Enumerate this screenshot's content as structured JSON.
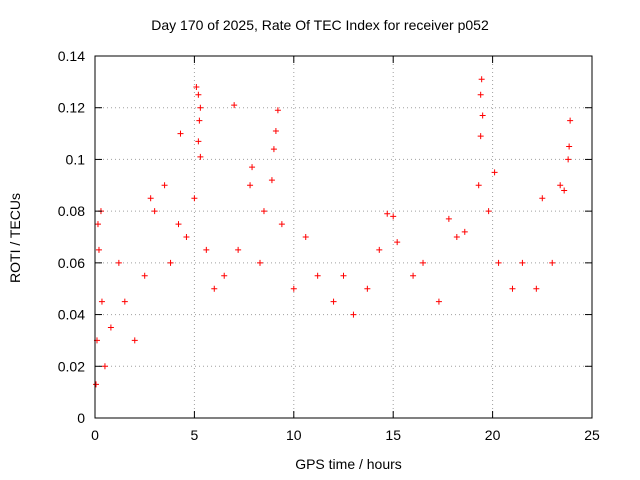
{
  "chart_data": {
    "type": "scatter",
    "title": "Day 170 of 2025, Rate Of TEC Index for receiver p052",
    "xlabel": "GPS time / hours",
    "ylabel": "ROTI / TECUs",
    "xlim": [
      0,
      25
    ],
    "ylim": [
      0,
      0.14
    ],
    "x_ticks": [
      0,
      5,
      10,
      15,
      20,
      25
    ],
    "y_ticks": [
      0,
      0.02,
      0.04,
      0.06,
      0.08,
      0.1,
      0.12,
      0.14
    ],
    "x_tick_labels": [
      "0",
      "5",
      "10",
      "15",
      "20",
      "25"
    ],
    "y_tick_labels": [
      "0",
      "0.02",
      "0.04",
      "0.06",
      "0.08",
      "0.1",
      "0.12",
      "0.14"
    ],
    "grid": true,
    "marker": "+",
    "color": "#ff0000",
    "series": [
      {
        "name": "ROTI",
        "points": [
          [
            0.05,
            0.013
          ],
          [
            0.1,
            0.03
          ],
          [
            0.15,
            0.075
          ],
          [
            0.2,
            0.065
          ],
          [
            0.3,
            0.08
          ],
          [
            0.35,
            0.045
          ],
          [
            0.5,
            0.02
          ],
          [
            0.8,
            0.035
          ],
          [
            1.2,
            0.06
          ],
          [
            1.5,
            0.045
          ],
          [
            2.0,
            0.03
          ],
          [
            2.5,
            0.055
          ],
          [
            2.8,
            0.085
          ],
          [
            3.0,
            0.08
          ],
          [
            3.5,
            0.09
          ],
          [
            3.8,
            0.06
          ],
          [
            4.2,
            0.075
          ],
          [
            4.3,
            0.11
          ],
          [
            4.6,
            0.07
          ],
          [
            5.0,
            0.085
          ],
          [
            5.1,
            0.128
          ],
          [
            5.2,
            0.125
          ],
          [
            5.3,
            0.12
          ],
          [
            5.25,
            0.115
          ],
          [
            5.2,
            0.107
          ],
          [
            5.3,
            0.101
          ],
          [
            5.6,
            0.065
          ],
          [
            6.0,
            0.05
          ],
          [
            6.5,
            0.055
          ],
          [
            7.0,
            0.121
          ],
          [
            7.2,
            0.065
          ],
          [
            7.8,
            0.09
          ],
          [
            7.9,
            0.097
          ],
          [
            8.3,
            0.06
          ],
          [
            8.5,
            0.08
          ],
          [
            8.9,
            0.092
          ],
          [
            9.0,
            0.104
          ],
          [
            9.1,
            0.111
          ],
          [
            9.2,
            0.119
          ],
          [
            9.4,
            0.075
          ],
          [
            10.0,
            0.05
          ],
          [
            10.6,
            0.07
          ],
          [
            11.2,
            0.055
          ],
          [
            12.0,
            0.045
          ],
          [
            12.5,
            0.055
          ],
          [
            13.0,
            0.04
          ],
          [
            13.7,
            0.05
          ],
          [
            14.3,
            0.065
          ],
          [
            14.7,
            0.079
          ],
          [
            15.0,
            0.078
          ],
          [
            15.2,
            0.068
          ],
          [
            16.0,
            0.055
          ],
          [
            16.5,
            0.06
          ],
          [
            17.3,
            0.045
          ],
          [
            17.8,
            0.077
          ],
          [
            18.2,
            0.07
          ],
          [
            18.6,
            0.072
          ],
          [
            19.3,
            0.09
          ],
          [
            19.4,
            0.125
          ],
          [
            19.45,
            0.131
          ],
          [
            19.5,
            0.117
          ],
          [
            19.4,
            0.109
          ],
          [
            19.8,
            0.08
          ],
          [
            20.1,
            0.095
          ],
          [
            20.3,
            0.06
          ],
          [
            21.0,
            0.05
          ],
          [
            21.5,
            0.06
          ],
          [
            22.2,
            0.05
          ],
          [
            22.5,
            0.085
          ],
          [
            23.0,
            0.06
          ],
          [
            23.4,
            0.09
          ],
          [
            23.6,
            0.088
          ],
          [
            23.8,
            0.1
          ],
          [
            23.9,
            0.115
          ],
          [
            23.85,
            0.105
          ]
        ]
      }
    ]
  }
}
